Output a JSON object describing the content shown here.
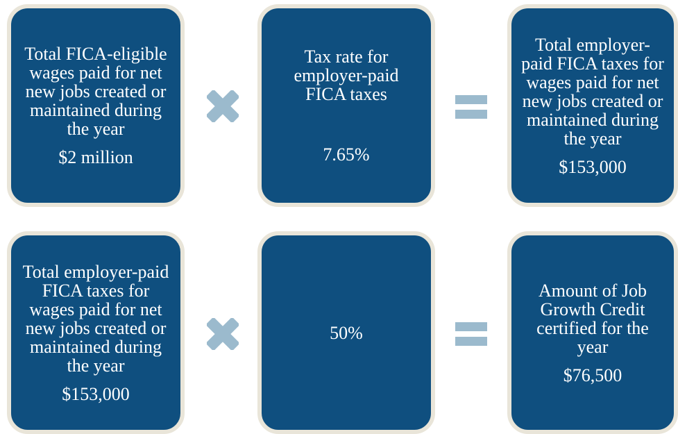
{
  "rows": [
    {
      "boxes": [
        {
          "label": "Total FICA-eligible wages paid for net new jobs created or maintained during the year",
          "value": "$2 million"
        },
        {
          "label": "Tax rate for employer-paid FICA taxes",
          "value": "7.65%"
        },
        {
          "label": "Total employer-paid FICA taxes for wages paid for net new jobs created or maintained during the year",
          "value": "$153,000"
        }
      ]
    },
    {
      "boxes": [
        {
          "label": "Total employer-paid FICA taxes for wages paid for net new jobs created or maintained during the year",
          "value": "$153,000"
        },
        {
          "value": "50%"
        },
        {
          "label": "Amount of Job Growth Credit certified for the year",
          "value": "$76,500"
        }
      ]
    }
  ]
}
